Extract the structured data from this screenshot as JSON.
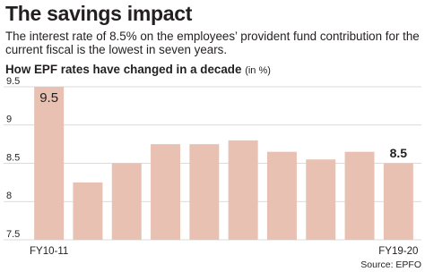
{
  "chart_data": {
    "type": "bar",
    "title": "The savings impact",
    "subtitle": "The interest rate of 8.5% on the employees’ provident fund contribution for the current fiscal is the lowest in seven years.",
    "chart_title": "How EPF rates have changed in a decade",
    "unit": "(in %)",
    "source": "Source: EPFO",
    "categories": [
      "FY10-11",
      null,
      null,
      null,
      null,
      null,
      null,
      null,
      null,
      "FY19-20"
    ],
    "values": [
      9.5,
      8.25,
      8.5,
      8.75,
      8.75,
      8.8,
      8.65,
      8.55,
      8.65,
      8.5
    ],
    "value_labels": [
      "9.5",
      null,
      null,
      null,
      null,
      null,
      null,
      null,
      null,
      "8.5"
    ],
    "color": "#e9c1b3",
    "ylim": [
      7.5,
      9.5
    ],
    "yticks": [
      7.5,
      8,
      8.5,
      9,
      9.5
    ],
    "grid": true
  }
}
